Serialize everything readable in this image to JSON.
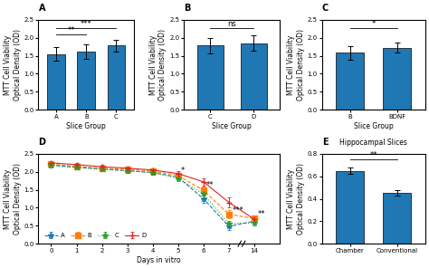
{
  "chart_data": [
    {
      "type": "bar",
      "title": "A",
      "xlabel": "Slice Group",
      "ylabel": "MTT Cell Viability\nOptical Density (OD)",
      "categories": [
        "A",
        "B",
        "C"
      ],
      "values": [
        1.55,
        1.62,
        1.78
      ],
      "errors": [
        0.18,
        0.2,
        0.16
      ],
      "ylim": [
        0,
        2.5
      ],
      "yticks": [
        {
          "value": 0.0,
          "label": "0.0"
        },
        {
          "value": 0.5,
          "label": "0.5"
        },
        {
          "value": 1.0,
          "label": "1.0"
        },
        {
          "value": 1.5,
          "label": "1.5"
        },
        {
          "value": 2.0,
          "label": "2.0"
        },
        {
          "value": 2.5,
          "label": "2.5"
        }
      ],
      "annotations": [
        {
          "text": "**",
          "from": "A",
          "to": "B",
          "y": 2.1
        },
        {
          "text": "***",
          "from": "A",
          "to": "C",
          "y": 2.28
        }
      ]
    },
    {
      "type": "bar",
      "title": "B",
      "xlabel": "Slice Group",
      "ylabel": "MTT Cell Viability\nOptical Density (OD)",
      "categories": [
        "C",
        "D"
      ],
      "values": [
        1.78,
        1.85
      ],
      "errors": [
        0.22,
        0.22
      ],
      "ylim": [
        0,
        2.5
      ],
      "yticks": [
        {
          "value": 0.0,
          "label": "0.0"
        },
        {
          "value": 0.5,
          "label": "0.5"
        },
        {
          "value": 1.0,
          "label": "1.0"
        },
        {
          "value": 1.5,
          "label": "1.5"
        },
        {
          "value": 2.0,
          "label": "2.0"
        },
        {
          "value": 2.5,
          "label": "2.5"
        }
      ],
      "annotations": [
        {
          "text": "ns",
          "from": "C",
          "to": "D",
          "y": 2.28
        }
      ]
    },
    {
      "type": "bar",
      "title": "C",
      "xlabel": "Slice Group",
      "ylabel": "MTT Cell Viability\nOptical Density (OD)",
      "categories": [
        "B",
        "BDNF"
      ],
      "values": [
        1.58,
        1.72
      ],
      "errors": [
        0.18,
        0.14
      ],
      "ylim": [
        0,
        2.5
      ],
      "yticks": [
        {
          "value": 0.0,
          "label": "0.0"
        },
        {
          "value": 0.5,
          "label": "0.5"
        },
        {
          "value": 1.0,
          "label": "1.0"
        },
        {
          "value": 1.5,
          "label": "1.5"
        },
        {
          "value": 2.0,
          "label": "2.0"
        },
        {
          "value": 2.5,
          "label": "2.5"
        }
      ],
      "annotations": [
        {
          "text": "*",
          "from": "B",
          "to": "BDNF",
          "y": 2.28
        }
      ]
    },
    {
      "type": "line",
      "title": "D",
      "xlabel": "Days in vitro",
      "ylabel": "MTT Cell Viability\nOptical Density (OD)",
      "categories": [
        "0",
        "1",
        "2",
        "3",
        "4",
        "5",
        "6",
        "7",
        "14"
      ],
      "series": [
        {
          "name": "A",
          "values": [
            2.18,
            2.12,
            2.08,
            2.03,
            1.98,
            1.85,
            1.25,
            0.48,
            0.63
          ],
          "errors": [
            0.05,
            0.05,
            0.05,
            0.05,
            0.05,
            0.07,
            0.1,
            0.1,
            0.08
          ],
          "marker": "star",
          "line_style": "dashed"
        },
        {
          "name": "B",
          "values": [
            2.22,
            2.15,
            2.1,
            2.07,
            2.02,
            1.9,
            1.48,
            0.82,
            0.7
          ],
          "errors": [
            0.05,
            0.05,
            0.05,
            0.05,
            0.05,
            0.07,
            0.1,
            0.12,
            0.08
          ],
          "marker": "square",
          "line_style": "dashed"
        },
        {
          "name": "C",
          "values": [
            2.2,
            2.13,
            2.07,
            2.03,
            1.98,
            1.82,
            1.38,
            0.56,
            0.58
          ],
          "errors": [
            0.05,
            0.05,
            0.05,
            0.05,
            0.05,
            0.07,
            0.1,
            0.08,
            0.08
          ],
          "marker": "star",
          "line_style": "dotted"
        },
        {
          "name": "D",
          "values": [
            2.25,
            2.2,
            2.14,
            2.1,
            2.05,
            1.95,
            1.72,
            1.15,
            0.68
          ],
          "errors": [
            0.05,
            0.05,
            0.05,
            0.05,
            0.05,
            0.07,
            0.1,
            0.14,
            0.08
          ],
          "marker": "plus",
          "line_style": "solid"
        }
      ],
      "ylim": [
        0,
        2.5
      ],
      "yticks": [
        {
          "value": 0.0,
          "label": "0.0"
        },
        {
          "value": 0.5,
          "label": "0.5"
        },
        {
          "value": 1.0,
          "label": "1.0"
        },
        {
          "value": 1.5,
          "label": "1.5"
        },
        {
          "value": 2.0,
          "label": "2.0"
        },
        {
          "value": 2.5,
          "label": "2.5"
        }
      ],
      "legend": "lower left",
      "annotations": [
        {
          "text": "*",
          "category": "5",
          "y": 1.93
        },
        {
          "text": "**",
          "category": "6",
          "y": 1.52
        },
        {
          "text": "***",
          "category": "7",
          "y": 0.82
        },
        {
          "text": "**",
          "category": "14",
          "y": 0.7
        }
      ]
    },
    {
      "type": "bar",
      "title": "E",
      "subtitle": "Hippocampal Slices",
      "ylabel": "MTT Cell Viability\nOptical Density (OD)",
      "categories": [
        "Chamber",
        "Conventional"
      ],
      "values": [
        0.65,
        0.45
      ],
      "errors": [
        0.03,
        0.025
      ],
      "ylim": [
        0,
        0.8
      ],
      "yticks": [
        {
          "value": 0.0,
          "label": "0.0"
        },
        {
          "value": 0.2,
          "label": "0.2"
        },
        {
          "value": 0.4,
          "label": "0.4"
        },
        {
          "value": 0.6,
          "label": "0.6"
        },
        {
          "value": 0.8,
          "label": "0.8"
        }
      ],
      "annotations": [
        {
          "text": "**",
          "from": "Chamber",
          "to": "Conventional",
          "y": 0.75
        }
      ]
    }
  ]
}
